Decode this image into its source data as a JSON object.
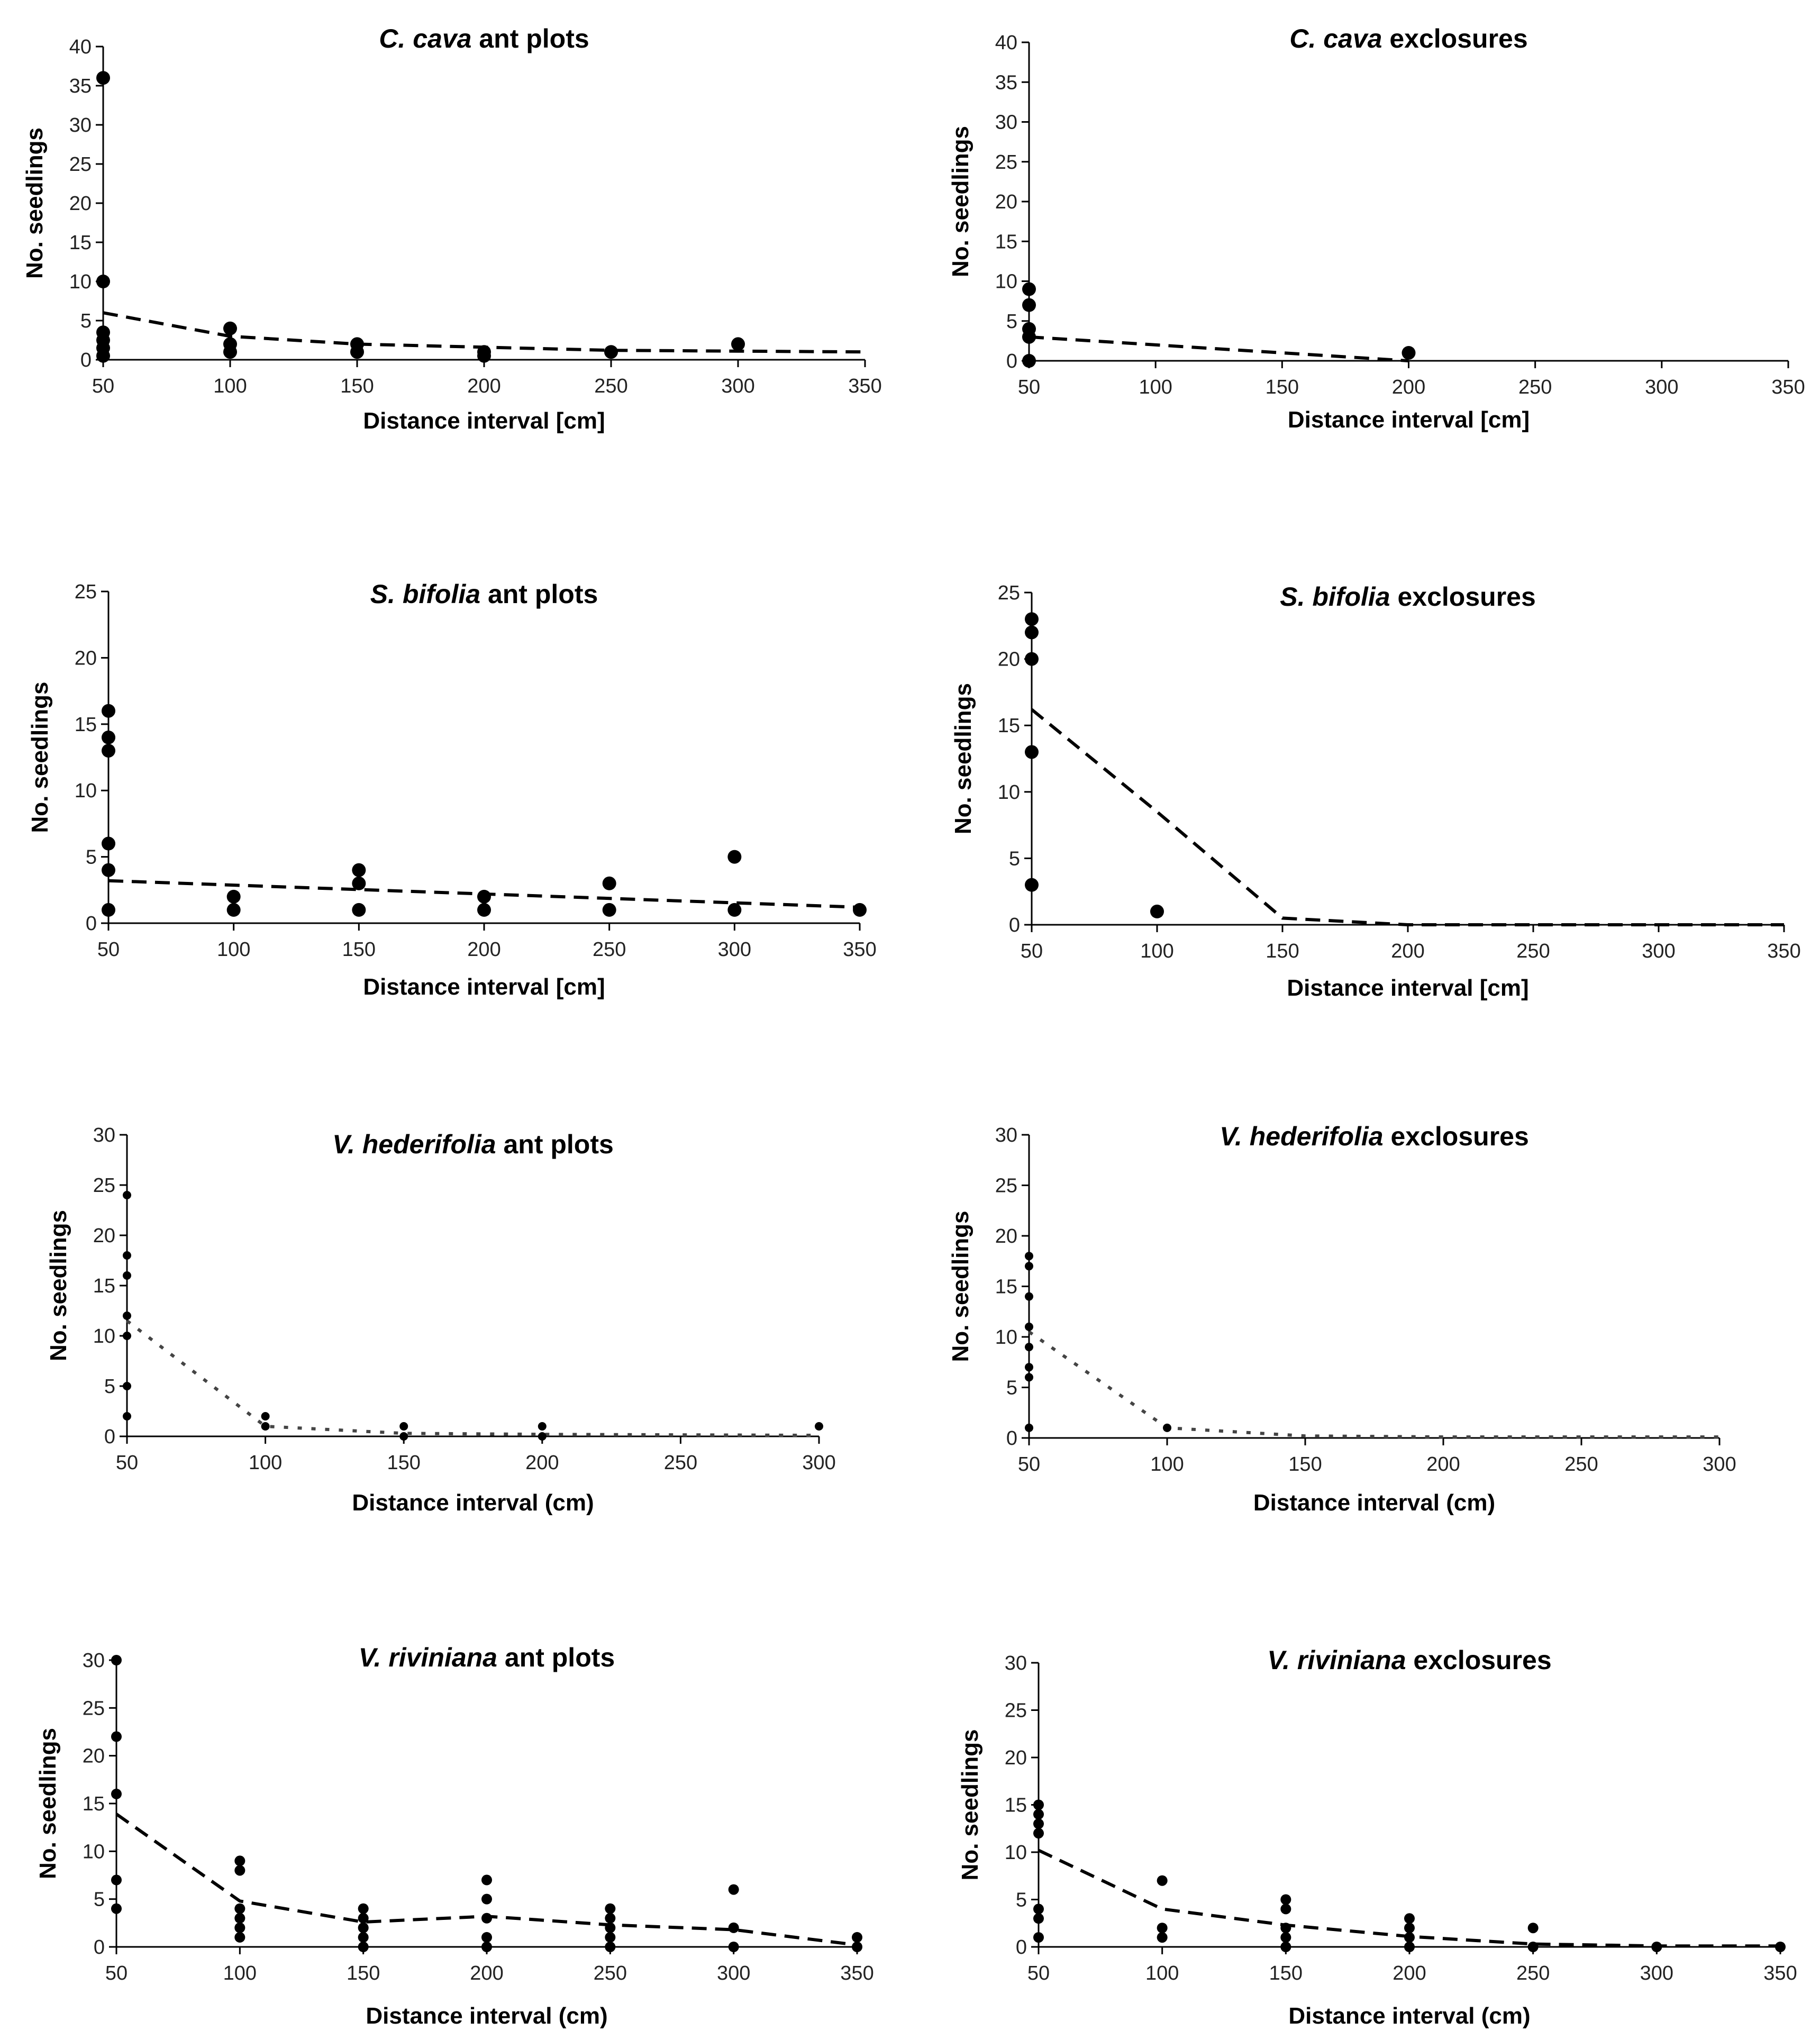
{
  "chart_data": [
    {
      "type": "scatter",
      "title_italic": "C. cava",
      "title_rest": " ant plots",
      "xlabel": "Distance interval [cm]",
      "ylabel": "No. seedlings",
      "xlim": [
        50,
        350
      ],
      "ylim": [
        0,
        40
      ],
      "xticks": [
        50,
        100,
        150,
        200,
        250,
        300,
        350
      ],
      "yticks": [
        0,
        5,
        10,
        15,
        20,
        25,
        30,
        35,
        40
      ],
      "points": [
        [
          50,
          36
        ],
        [
          50,
          10
        ],
        [
          50,
          3.5
        ],
        [
          50,
          2.5
        ],
        [
          50,
          1.5
        ],
        [
          50,
          0.5
        ],
        [
          100,
          4
        ],
        [
          100,
          2
        ],
        [
          100,
          1
        ],
        [
          150,
          2
        ],
        [
          150,
          1
        ],
        [
          200,
          1
        ],
        [
          200,
          0.5
        ],
        [
          250,
          1
        ],
        [
          300,
          2
        ]
      ],
      "trend": [
        [
          50,
          6
        ],
        [
          100,
          3
        ],
        [
          150,
          2
        ],
        [
          200,
          1.6
        ],
        [
          250,
          1.2
        ],
        [
          300,
          1.1
        ],
        [
          350,
          1
        ]
      ],
      "trend_style": "dashed"
    },
    {
      "type": "scatter",
      "title_italic": "C. cava",
      "title_rest": " exclosures",
      "xlabel": "Distance interval [cm]",
      "ylabel": "No. seedlings",
      "xlim": [
        50,
        350
      ],
      "ylim": [
        0,
        40
      ],
      "xticks": [
        50,
        100,
        150,
        200,
        250,
        300,
        350
      ],
      "yticks": [
        0,
        5,
        10,
        15,
        20,
        25,
        30,
        35,
        40
      ],
      "points": [
        [
          50,
          9
        ],
        [
          50,
          7
        ],
        [
          50,
          4
        ],
        [
          50,
          3
        ],
        [
          50,
          0
        ],
        [
          200,
          1
        ]
      ],
      "trend": [
        [
          50,
          3
        ],
        [
          100,
          2
        ],
        [
          150,
          1
        ],
        [
          200,
          0
        ]
      ],
      "trend_style": "dashed"
    },
    {
      "type": "scatter",
      "title_italic": "S. bifolia",
      "title_rest": " ant plots",
      "xlabel": "Distance interval [cm]",
      "ylabel": "No. seedlings",
      "xlim": [
        50,
        350
      ],
      "ylim": [
        0,
        25
      ],
      "xticks": [
        50,
        100,
        150,
        200,
        250,
        300,
        350
      ],
      "yticks": [
        0,
        5,
        10,
        15,
        20,
        25
      ],
      "points": [
        [
          50,
          16
        ],
        [
          50,
          14
        ],
        [
          50,
          13
        ],
        [
          50,
          6
        ],
        [
          50,
          4
        ],
        [
          50,
          1
        ],
        [
          100,
          2
        ],
        [
          100,
          1
        ],
        [
          150,
          4
        ],
        [
          150,
          3
        ],
        [
          150,
          1
        ],
        [
          200,
          2
        ],
        [
          200,
          1
        ],
        [
          250,
          3
        ],
        [
          250,
          1
        ],
        [
          300,
          5
        ],
        [
          300,
          1
        ],
        [
          350,
          1
        ]
      ],
      "trend": [
        [
          50,
          3.2
        ],
        [
          350,
          1.2
        ]
      ],
      "trend_style": "dashed"
    },
    {
      "type": "scatter",
      "title_italic": "S. bifolia",
      "title_rest": " exclosures",
      "xlabel": "Distance interval [cm]",
      "ylabel": "No. seedlings",
      "xlim": [
        50,
        350
      ],
      "ylim": [
        0,
        25
      ],
      "xticks": [
        50,
        100,
        150,
        200,
        250,
        300,
        350
      ],
      "yticks": [
        0,
        5,
        10,
        15,
        20,
        25
      ],
      "points": [
        [
          50,
          23
        ],
        [
          50,
          22
        ],
        [
          50,
          20
        ],
        [
          50,
          13
        ],
        [
          50,
          3
        ],
        [
          100,
          1
        ]
      ],
      "trend": [
        [
          50,
          16.2
        ],
        [
          100,
          8.5
        ],
        [
          150,
          0.5
        ],
        [
          200,
          0
        ],
        [
          350,
          0
        ]
      ],
      "trend_style": "dashed"
    },
    {
      "type": "scatter",
      "title_italic": "V. hederifolia",
      "title_rest": " ant plots",
      "xlabel": "Distance interval (cm)",
      "ylabel": "No. seedlings",
      "xlim": [
        50,
        300
      ],
      "ylim": [
        0,
        30
      ],
      "xticks": [
        50,
        100,
        150,
        200,
        250,
        300
      ],
      "yticks": [
        0,
        5,
        10,
        15,
        20,
        25,
        30
      ],
      "points": [
        [
          50,
          24
        ],
        [
          50,
          18
        ],
        [
          50,
          16
        ],
        [
          50,
          12
        ],
        [
          50,
          10
        ],
        [
          50,
          5
        ],
        [
          50,
          2
        ],
        [
          100,
          2
        ],
        [
          100,
          1
        ],
        [
          150,
          1
        ],
        [
          150,
          0
        ],
        [
          200,
          1
        ],
        [
          200,
          0
        ],
        [
          300,
          1
        ]
      ],
      "trend": [
        [
          50,
          11.5
        ],
        [
          100,
          1
        ],
        [
          150,
          0.3
        ],
        [
          200,
          0.2
        ],
        [
          300,
          0.1
        ]
      ],
      "trend_style": "dotted"
    },
    {
      "type": "scatter",
      "title_italic": "V. hederifolia",
      "title_rest": " exclosures",
      "xlabel": "Distance interval (cm)",
      "ylabel": "No. seedlings",
      "xlim": [
        50,
        300
      ],
      "ylim": [
        0,
        30
      ],
      "xticks": [
        50,
        100,
        150,
        200,
        250,
        300
      ],
      "yticks": [
        0,
        5,
        10,
        15,
        20,
        25,
        30
      ],
      "points": [
        [
          50,
          18
        ],
        [
          50,
          17
        ],
        [
          50,
          14
        ],
        [
          50,
          11
        ],
        [
          50,
          9
        ],
        [
          50,
          7
        ],
        [
          50,
          6
        ],
        [
          50,
          1
        ],
        [
          100,
          1
        ]
      ],
      "trend": [
        [
          50,
          10.5
        ],
        [
          100,
          1
        ],
        [
          150,
          0.2
        ],
        [
          200,
          0.1
        ],
        [
          300,
          0.1
        ]
      ],
      "trend_style": "dotted"
    },
    {
      "type": "scatter",
      "title_italic": "V. riviniana",
      "title_rest": " ant plots",
      "xlabel": "Distance interval (cm)",
      "ylabel": "No. seedlings",
      "xlim": [
        50,
        350
      ],
      "ylim": [
        0,
        30
      ],
      "xticks": [
        50,
        100,
        150,
        200,
        250,
        300,
        350
      ],
      "yticks": [
        0,
        5,
        10,
        15,
        20,
        25,
        30
      ],
      "points": [
        [
          50,
          30
        ],
        [
          50,
          22
        ],
        [
          50,
          16
        ],
        [
          50,
          7
        ],
        [
          50,
          4
        ],
        [
          100,
          9
        ],
        [
          100,
          8
        ],
        [
          100,
          4
        ],
        [
          100,
          3
        ],
        [
          100,
          2
        ],
        [
          100,
          1
        ],
        [
          150,
          4
        ],
        [
          150,
          3
        ],
        [
          150,
          2
        ],
        [
          150,
          1
        ],
        [
          150,
          0
        ],
        [
          200,
          7
        ],
        [
          200,
          5
        ],
        [
          200,
          3
        ],
        [
          200,
          1
        ],
        [
          200,
          0
        ],
        [
          250,
          4
        ],
        [
          250,
          3
        ],
        [
          250,
          2
        ],
        [
          250,
          1
        ],
        [
          250,
          0
        ],
        [
          300,
          6
        ],
        [
          300,
          2
        ],
        [
          300,
          0
        ],
        [
          350,
          1
        ],
        [
          350,
          0
        ]
      ],
      "trend": [
        [
          50,
          13.9
        ],
        [
          100,
          4.8
        ],
        [
          150,
          2.6
        ],
        [
          200,
          3.2
        ],
        [
          250,
          2.3
        ],
        [
          300,
          1.8
        ],
        [
          350,
          0.2
        ]
      ],
      "trend_style": "dashed"
    },
    {
      "type": "scatter",
      "title_italic": "V. riviniana",
      "title_rest": " exclosures",
      "xlabel": "Distance interval (cm)",
      "ylabel": "No. seedlings",
      "xlim": [
        50,
        350
      ],
      "ylim": [
        0,
        30
      ],
      "xticks": [
        50,
        100,
        150,
        200,
        250,
        300,
        350
      ],
      "yticks": [
        0,
        5,
        10,
        15,
        20,
        25,
        30
      ],
      "points": [
        [
          50,
          15
        ],
        [
          50,
          14
        ],
        [
          50,
          13
        ],
        [
          50,
          12
        ],
        [
          50,
          4
        ],
        [
          50,
          3
        ],
        [
          50,
          1
        ],
        [
          100,
          7
        ],
        [
          100,
          2
        ],
        [
          100,
          1
        ],
        [
          150,
          5
        ],
        [
          150,
          4
        ],
        [
          150,
          2
        ],
        [
          150,
          1
        ],
        [
          150,
          0
        ],
        [
          200,
          3
        ],
        [
          200,
          2
        ],
        [
          200,
          1
        ],
        [
          200,
          0
        ],
        [
          250,
          2
        ],
        [
          250,
          0
        ],
        [
          300,
          0
        ],
        [
          350,
          0
        ]
      ],
      "trend": [
        [
          50,
          10.2
        ],
        [
          100,
          4
        ],
        [
          150,
          2.3
        ],
        [
          200,
          1.1
        ],
        [
          250,
          0.3
        ],
        [
          300,
          0.1
        ],
        [
          350,
          0.1
        ]
      ],
      "trend_style": "dashed"
    }
  ]
}
